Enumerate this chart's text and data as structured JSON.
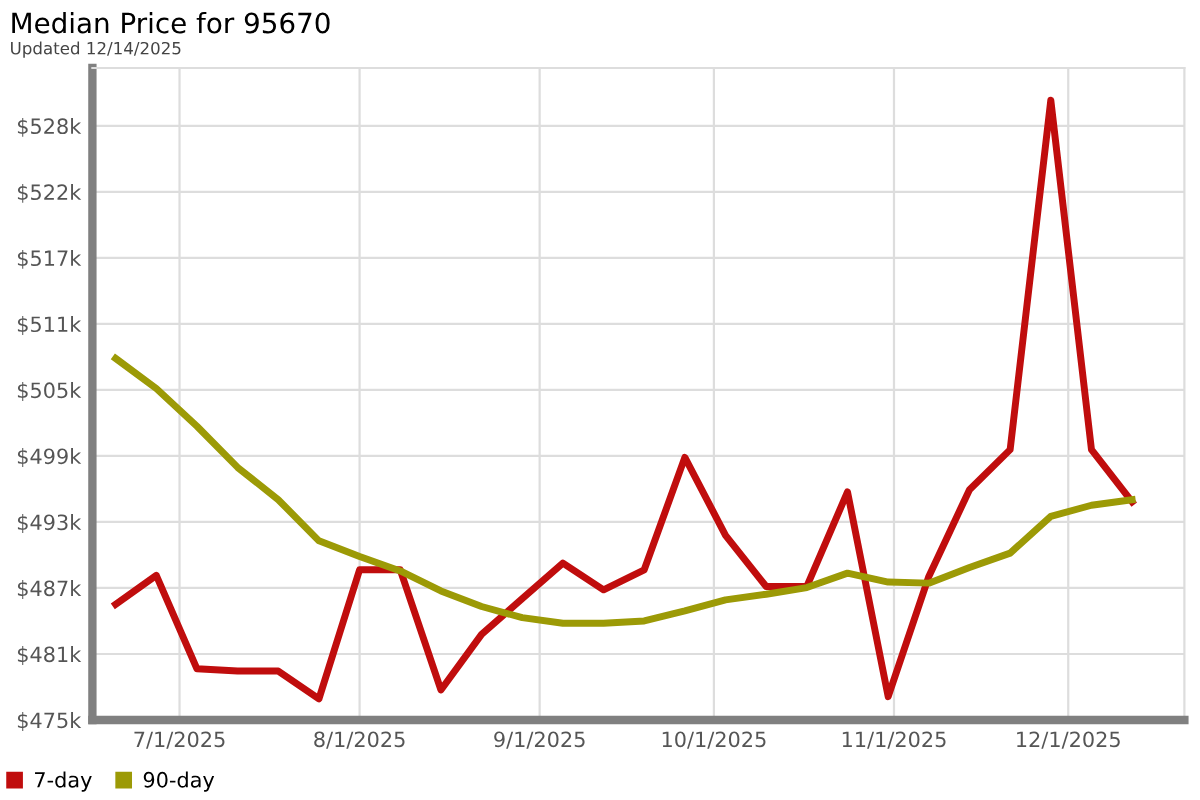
{
  "chart_data": {
    "type": "line",
    "title": "Median Price for 95670",
    "subtitle": "Updated 12/14/2025",
    "x": [
      "2025-06-20",
      "2025-06-27",
      "2025-07-04",
      "2025-07-11",
      "2025-07-18",
      "2025-07-25",
      "2025-08-01",
      "2025-08-08",
      "2025-08-15",
      "2025-08-22",
      "2025-08-29",
      "2025-09-05",
      "2025-09-12",
      "2025-09-19",
      "2025-09-26",
      "2025-10-03",
      "2025-10-10",
      "2025-10-17",
      "2025-10-24",
      "2025-10-31",
      "2025-11-07",
      "2025-11-14",
      "2025-11-21",
      "2025-11-28",
      "2025-12-05",
      "2025-12-12"
    ],
    "series": [
      {
        "name": "7-day",
        "color": "#c00d0d",
        "values": [
          485400,
          488000,
          479600,
          479400,
          479400,
          476900,
          488500,
          488500,
          477700,
          482700,
          485900,
          489100,
          486700,
          488500,
          498600,
          491600,
          487000,
          487000,
          495500,
          477100,
          487900,
          495700,
          499300,
          530700,
          499300,
          494600
        ]
      },
      {
        "name": "90-day",
        "color": "#9c9a06",
        "values": [
          507500,
          504800,
          501400,
          497700,
          494800,
          491100,
          489700,
          488400,
          486600,
          485200,
          484200,
          483700,
          483700,
          483900,
          484800,
          485800,
          486300,
          486900,
          488200,
          487400,
          487300,
          488700,
          490000,
          493300,
          494300,
          494800
        ]
      }
    ],
    "xlim": [
      "2025-06-16",
      "2025-12-21"
    ],
    "xticks": [
      {
        "value": "2025-07-01",
        "label": "7/1/2025"
      },
      {
        "value": "2025-08-01",
        "label": "8/1/2025"
      },
      {
        "value": "2025-09-01",
        "label": "9/1/2025"
      },
      {
        "value": "2025-10-01",
        "label": "10/1/2025"
      },
      {
        "value": "2025-11-01",
        "label": "11/1/2025"
      },
      {
        "value": "2025-12-01",
        "label": "12/1/2025"
      }
    ],
    "ylim": [
      475000,
      533600
    ],
    "yticks": [
      {
        "value": 475000,
        "label": "$475k"
      },
      {
        "value": 480933,
        "label": "$481k"
      },
      {
        "value": 486867,
        "label": "$487k"
      },
      {
        "value": 492800,
        "label": "$493k"
      },
      {
        "value": 498733,
        "label": "$499k"
      },
      {
        "value": 504667,
        "label": "$505k"
      },
      {
        "value": 510600,
        "label": "$511k"
      },
      {
        "value": 516533,
        "label": "$517k"
      },
      {
        "value": 522467,
        "label": "$522k"
      },
      {
        "value": 528400,
        "label": "$528k"
      }
    ],
    "grid": true,
    "legend": "bottom left",
    "marker": "none",
    "line_style": "solid"
  }
}
